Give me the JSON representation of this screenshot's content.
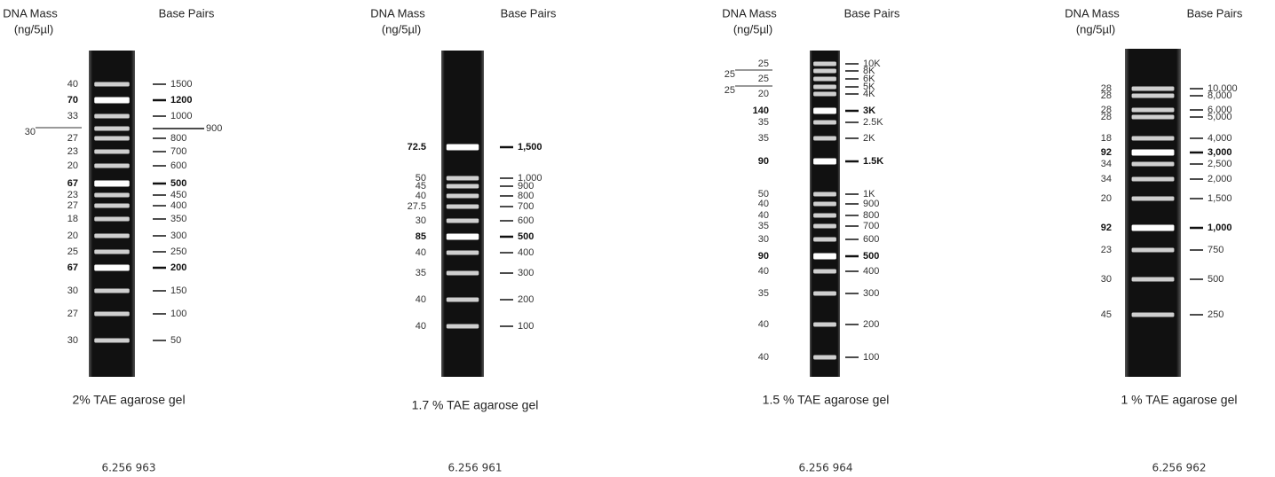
{
  "panels": [
    {
      "mass_header": [
        "DNA Mass",
        "(ng/5µl)"
      ],
      "bp_header": "Base Pairs",
      "gel_label": "2% TAE agarose gel",
      "catalog": "6.256 963",
      "bands": [
        {
          "mass": "40",
          "bp": "1500"
        },
        {
          "mass": "70",
          "bp": "1200",
          "bold": true
        },
        {
          "mass": "33",
          "bp": "1000"
        },
        {
          "mass": "30",
          "bp": "900",
          "leader": true
        },
        {
          "mass": "27",
          "bp": "800"
        },
        {
          "mass": "23",
          "bp": "700"
        },
        {
          "mass": "20",
          "bp": "600"
        },
        {
          "mass": "67",
          "bp": "500",
          "bold": true
        },
        {
          "mass": "23",
          "bp": "450"
        },
        {
          "mass": "27",
          "bp": "400"
        },
        {
          "mass": "18",
          "bp": "350"
        },
        {
          "mass": "20",
          "bp": "300"
        },
        {
          "mass": "25",
          "bp": "250"
        },
        {
          "mass": "67",
          "bp": "200",
          "bold": true
        },
        {
          "mass": "30",
          "bp": "150"
        },
        {
          "mass": "27",
          "bp": "100"
        },
        {
          "mass": "30",
          "bp": "50"
        }
      ]
    },
    {
      "mass_header": [
        "DNA Mass",
        "(ng/5µl)"
      ],
      "bp_header": "Base Pairs",
      "gel_label": "1.7 % TAE agarose gel",
      "catalog": "6.256 961",
      "bands": [
        {
          "mass": "72.5",
          "bp": "1,500",
          "bold": true
        },
        {
          "mass": "50",
          "bp": "1,000"
        },
        {
          "mass": "45",
          "bp": "900"
        },
        {
          "mass": "40",
          "bp": "800"
        },
        {
          "mass": "27.5",
          "bp": "700"
        },
        {
          "mass": "30",
          "bp": "600"
        },
        {
          "mass": "85",
          "bp": "500",
          "bold": true
        },
        {
          "mass": "40",
          "bp": "400"
        },
        {
          "mass": "35",
          "bp": "300"
        },
        {
          "mass": "40",
          "bp": "200"
        },
        {
          "mass": "40",
          "bp": "100"
        }
      ]
    },
    {
      "mass_header": [
        "DNA Mass",
        "(ng/5µl)"
      ],
      "bp_header": "Base Pairs",
      "gel_label": "1.5 % TAE agarose gel",
      "catalog": "6.256 964",
      "bands": [
        {
          "mass": "25",
          "bp": "10K"
        },
        {
          "mass": "25",
          "bp": "8K",
          "leader": true
        },
        {
          "mass": "25",
          "bp": "6K"
        },
        {
          "mass": "25",
          "bp": "5K",
          "leader": true
        },
        {
          "mass": "20",
          "bp": "4K"
        },
        {
          "mass": "140",
          "bp": "3K",
          "bold": true
        },
        {
          "mass": "35",
          "bp": "2.5K"
        },
        {
          "mass": "35",
          "bp": "2K"
        },
        {
          "mass": "90",
          "bp": "1.5K",
          "bold": true
        },
        {
          "mass": "50",
          "bp": "1K"
        },
        {
          "mass": "40",
          "bp": "900"
        },
        {
          "mass": "40",
          "bp": "800"
        },
        {
          "mass": "35",
          "bp": "700"
        },
        {
          "mass": "30",
          "bp": "600"
        },
        {
          "mass": "90",
          "bp": "500",
          "bold": true
        },
        {
          "mass": "40",
          "bp": "400"
        },
        {
          "mass": "35",
          "bp": "300"
        },
        {
          "mass": "40",
          "bp": "200"
        },
        {
          "mass": "40",
          "bp": "100"
        }
      ]
    },
    {
      "mass_header": [
        "DNA Mass",
        "(ng/5µl)"
      ],
      "bp_header": "Base Pairs",
      "gel_label": "1 % TAE agarose gel",
      "catalog": "6.256 962",
      "bands": [
        {
          "mass": "28",
          "bp": "10,000"
        },
        {
          "mass": "28",
          "bp": "8,000"
        },
        {
          "mass": "28",
          "bp": "6,000"
        },
        {
          "mass": "28",
          "bp": "5,000"
        },
        {
          "mass": "18",
          "bp": "4,000"
        },
        {
          "mass": "92",
          "bp": "3,000",
          "bold": true
        },
        {
          "mass": "34",
          "bp": "2,500"
        },
        {
          "mass": "34",
          "bp": "2,000"
        },
        {
          "mass": "20",
          "bp": "1,500"
        },
        {
          "mass": "92",
          "bp": "1,000",
          "bold": true
        },
        {
          "mass": "23",
          "bp": "750"
        },
        {
          "mass": "30",
          "bp": "500"
        },
        {
          "mass": "45",
          "bp": "250"
        }
      ]
    }
  ]
}
